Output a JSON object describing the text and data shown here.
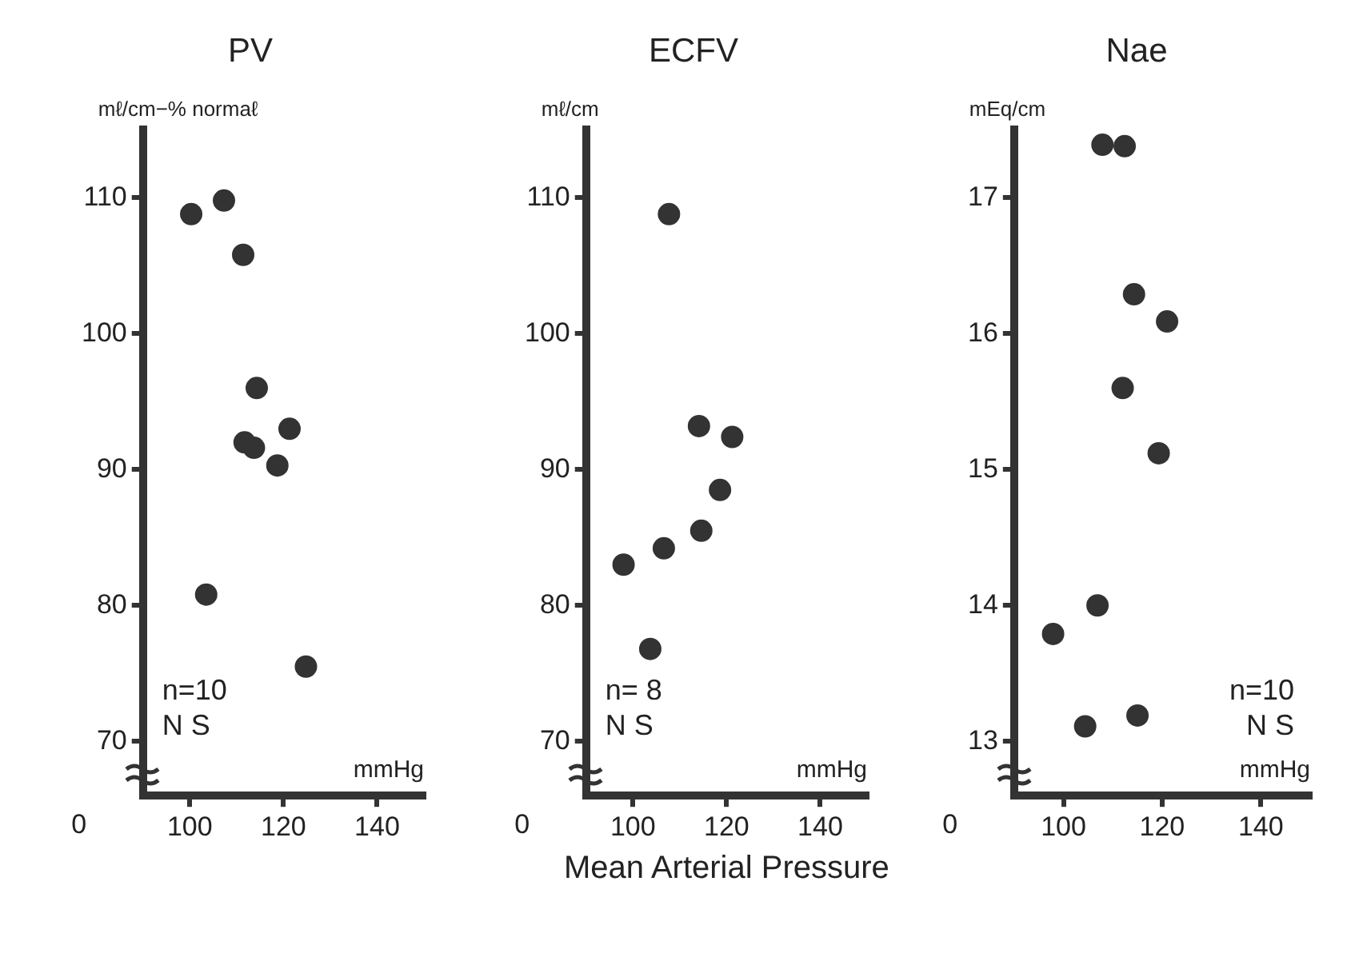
{
  "chart_data": [
    {
      "type": "scatter",
      "title": "PV",
      "ylabel": "mℓ/cm−% normaℓ",
      "marker": "circle",
      "legend": false,
      "xlim": [
        90,
        150
      ],
      "xticks": [
        100,
        120,
        140
      ],
      "ylim": [
        66,
        115
      ],
      "yticks": [
        70,
        80,
        90,
        100,
        110
      ],
      "series": [
        {
          "color": "#333333",
          "x": [
            100.3,
            107.3,
            111.4,
            114.3,
            111.7,
            113.7,
            121.3,
            118.7,
            103.5,
            124.8
          ],
          "values": [
            108.8,
            109.8,
            105.8,
            96.0,
            92.0,
            91.6,
            93.0,
            90.3,
            80.8,
            75.5
          ]
        }
      ],
      "annotations": [
        "mmHg",
        "0",
        "n=10",
        "N S"
      ]
    },
    {
      "type": "scatter",
      "title": "ECFV",
      "ylabel": "mℓ/cm",
      "xlabel": "Mean Arterial Pressure",
      "marker": "circle",
      "legend": false,
      "xlim": [
        90,
        150
      ],
      "xticks": [
        100,
        120,
        140
      ],
      "ylim": [
        66,
        115
      ],
      "yticks": [
        70,
        80,
        90,
        100,
        110
      ],
      "series": [
        {
          "color": "#333333",
          "x": [
            107.7,
            114.1,
            121.2,
            118.6,
            114.6,
            106.6,
            98.0,
            103.7
          ],
          "values": [
            108.8,
            93.2,
            92.4,
            88.5,
            85.5,
            84.2,
            83.0,
            76.8
          ]
        }
      ],
      "annotations": [
        "mmHg",
        "0",
        "n= 8",
        "N S"
      ]
    },
    {
      "type": "scatter",
      "title": "Nae",
      "ylabel": "mEq/cm",
      "marker": "circle",
      "legend": false,
      "xlim": [
        90,
        150
      ],
      "xticks": [
        100,
        120,
        140
      ],
      "ylim": [
        12.6,
        17.5
      ],
      "yticks": [
        13,
        14,
        15,
        16,
        17
      ],
      "series": [
        {
          "color": "#333333",
          "x": [
            107.9,
            112.4,
            114.3,
            121.0,
            112.0,
            119.3,
            106.9,
            97.9,
            104.4,
            115.0
          ],
          "values": [
            17.39,
            17.38,
            16.29,
            16.09,
            15.6,
            15.12,
            14.0,
            13.79,
            13.11,
            13.19
          ]
        }
      ],
      "annotations": [
        "mmHg",
        "0",
        "n=10",
        "N S"
      ]
    }
  ]
}
